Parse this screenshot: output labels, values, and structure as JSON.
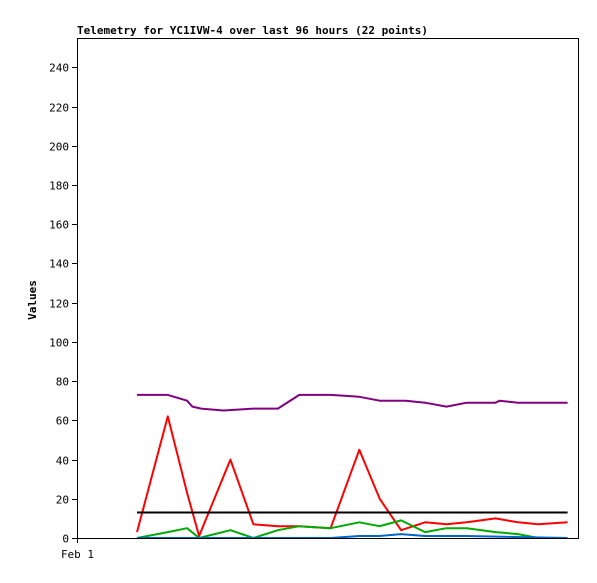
{
  "chart_data": {
    "type": "line",
    "title": "Telemetry for YC1IVW-4 over last 96 hours (22 points)",
    "xlabel": "",
    "ylabel": "Values",
    "ylim": [
      0,
      255
    ],
    "yticks": [
      0,
      20,
      40,
      60,
      80,
      100,
      120,
      140,
      160,
      180,
      200,
      220,
      240
    ],
    "xlim": [
      0,
      96
    ],
    "xtick_labels": [
      {
        "x": 0,
        "label": "Feb 1"
      }
    ],
    "grid": false,
    "legend": "none",
    "series": [
      {
        "color": "#800080",
        "x": [
          11.5,
          17.4,
          21.1,
          22.1,
          23.8,
          28.1,
          33.8,
          38.5,
          42.6,
          48.6,
          54.1,
          58.0,
          63.0,
          66.7,
          70.8,
          74.7,
          80.2,
          81.0,
          84.5,
          88.4,
          94.0
        ],
        "values": [
          73,
          73,
          70,
          67,
          66,
          65,
          66,
          66,
          73,
          73,
          72,
          70,
          70,
          69,
          67,
          69,
          69,
          70,
          69,
          69,
          69
        ]
      },
      {
        "color": "#ff0000",
        "x": [
          11.5,
          17.4,
          21.1,
          23.4,
          29.4,
          33.8,
          38.5,
          42.6,
          48.6,
          54.1,
          58.0,
          62.1,
          66.7,
          70.8,
          74.7,
          80.2,
          84.5,
          88.4,
          94.0
        ],
        "values": [
          3,
          62,
          23,
          1,
          40,
          7,
          6,
          6,
          5,
          45,
          20,
          4,
          8,
          7,
          8,
          10,
          8,
          7,
          8
        ]
      },
      {
        "color": "#00aa00",
        "x": [
          11.5,
          17.4,
          21.1,
          23.4,
          29.4,
          33.8,
          38.5,
          42.6,
          48.6,
          54.1,
          58.0,
          62.1,
          66.7,
          70.8,
          74.7,
          80.2,
          84.5,
          88.4
        ],
        "values": [
          0,
          3,
          5,
          0,
          4,
          0,
          4,
          6,
          5,
          8,
          6,
          9,
          3,
          5,
          5,
          3,
          2,
          0
        ]
      },
      {
        "color": "#000000",
        "x": [
          11.5,
          94.0
        ],
        "values": [
          13,
          13
        ]
      },
      {
        "color": "#0066cc",
        "x": [
          11.5,
          48.6,
          54.1,
          58.0,
          62.1,
          66.7,
          70.8,
          74.7,
          94.0
        ],
        "values": [
          0,
          0,
          1,
          1,
          2,
          1,
          1,
          1,
          0
        ]
      }
    ]
  }
}
